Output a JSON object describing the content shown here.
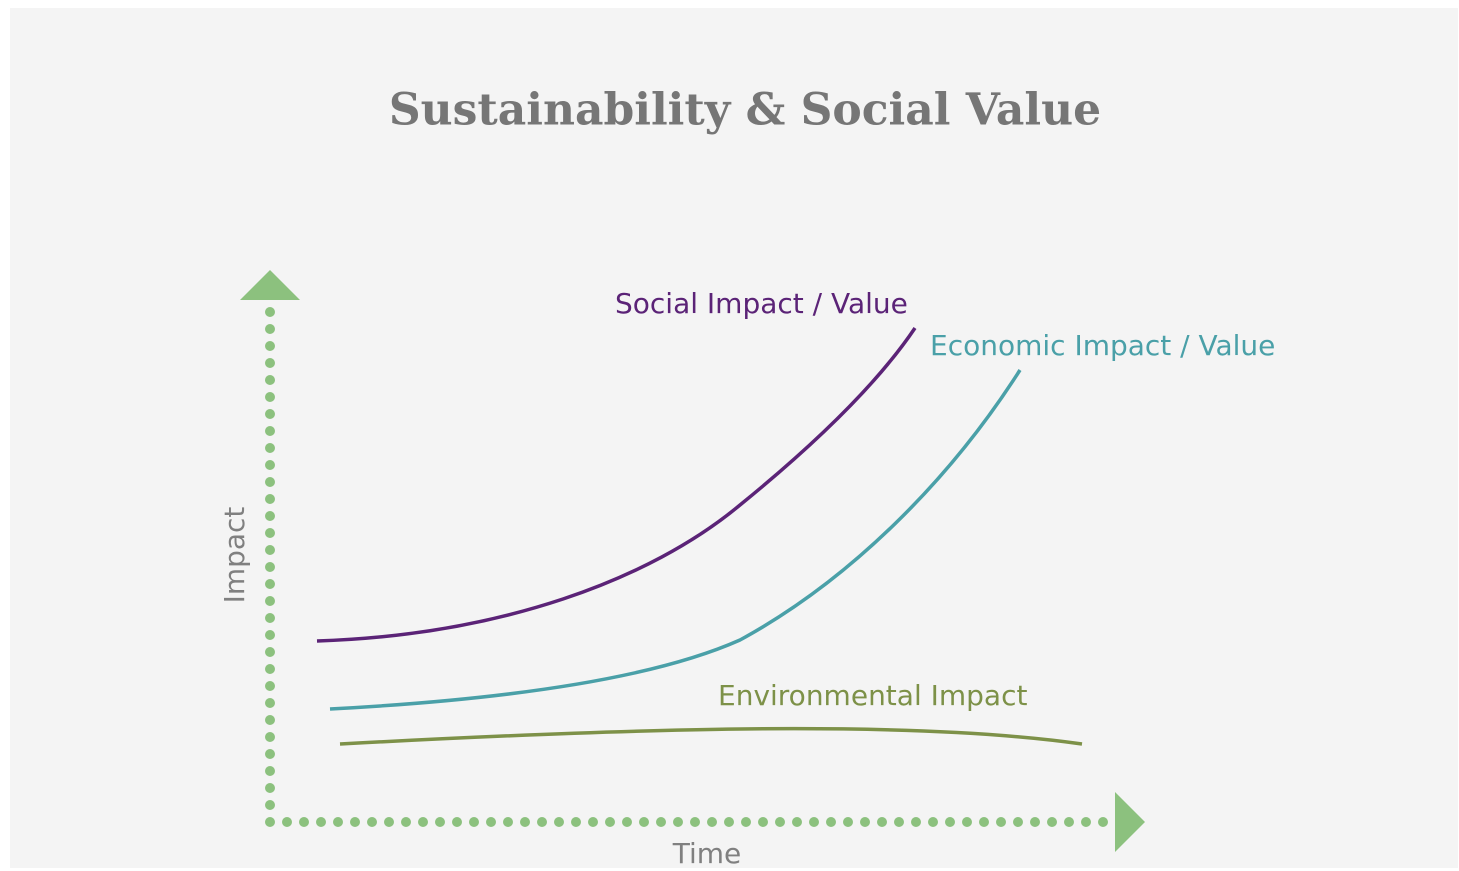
{
  "title": "Sustainability & Social Value",
  "y_axis_label": "Impact",
  "x_axis_label": "Time",
  "curves": [
    {
      "label": "Social Impact / Value"
    },
    {
      "label": "Economic Impact / Value"
    },
    {
      "label": "Environmental Impact"
    }
  ]
}
